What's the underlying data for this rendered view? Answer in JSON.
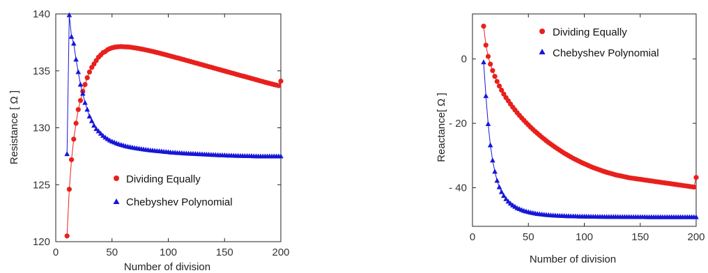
{
  "chart_data": [
    {
      "type": "line",
      "xlabel": "Number of division",
      "ylabel": "Resistance [ Ω ]",
      "xlim": [
        0,
        200
      ],
      "ylim": [
        120,
        140
      ],
      "xticks": [
        0,
        50,
        100,
        150,
        200
      ],
      "yticks": [
        120,
        125,
        130,
        135,
        140
      ],
      "xtick_labels": [
        "0",
        "50",
        "100",
        "150",
        "200"
      ],
      "ytick_labels": [
        "120",
        "125",
        "130",
        "135",
        "140"
      ],
      "grid": false,
      "legend_position": "lower-center",
      "series": [
        {
          "name": "Dividing Equally",
          "marker": "circle",
          "color": "#e8201c",
          "x_start": 10,
          "x_step": 2,
          "values": [
            120.5,
            124.6,
            127.2,
            129.0,
            130.4,
            131.6,
            132.4,
            133.2,
            133.8,
            134.4,
            134.9,
            135.3,
            135.6,
            135.9,
            136.2,
            136.4,
            136.6,
            136.7,
            136.85,
            136.95,
            137.02,
            137.07,
            137.1,
            137.12,
            137.13,
            137.12,
            137.11,
            137.1,
            137.08,
            137.05,
            137.02,
            136.99,
            136.96,
            136.92,
            136.88,
            136.84,
            136.8,
            136.75,
            136.71,
            136.66,
            136.61,
            136.56,
            136.51,
            136.46,
            136.41,
            136.35,
            136.3,
            136.25,
            136.19,
            136.14,
            136.09,
            136.03,
            135.98,
            135.92,
            135.87,
            135.81,
            135.76,
            135.7,
            135.65,
            135.59,
            135.54,
            135.48,
            135.43,
            135.37,
            135.32,
            135.26,
            135.21,
            135.15,
            135.1,
            135.04,
            134.99,
            134.93,
            134.88,
            134.82,
            134.77,
            134.71,
            134.66,
            134.6,
            134.55,
            134.5,
            134.44,
            134.39,
            134.33,
            134.28,
            134.22,
            134.17,
            134.11,
            134.06,
            134.0,
            133.95,
            133.9,
            133.85,
            133.8,
            133.75,
            133.7,
            134.1
          ]
        },
        {
          "name": "Chebyshev Polynomial",
          "marker": "triangle",
          "color": "#1616d8",
          "x_start": 10,
          "x_step": 2,
          "values": [
            127.7,
            139.9,
            138.0,
            137.4,
            136.0,
            134.9,
            133.8,
            133.0,
            132.2,
            131.6,
            131.0,
            130.6,
            130.2,
            129.9,
            129.7,
            129.5,
            129.3,
            129.15,
            129.02,
            128.9,
            128.8,
            128.72,
            128.64,
            128.57,
            128.51,
            128.45,
            128.4,
            128.35,
            128.31,
            128.27,
            128.23,
            128.2,
            128.17,
            128.14,
            128.11,
            128.08,
            128.06,
            128.03,
            128.01,
            127.99,
            127.97,
            127.95,
            127.93,
            127.91,
            127.89,
            127.87,
            127.85,
            127.83,
            127.82,
            127.8,
            127.79,
            127.78,
            127.76,
            127.75,
            127.74,
            127.73,
            127.72,
            127.71,
            127.7,
            127.69,
            127.68,
            127.67,
            127.66,
            127.65,
            127.64,
            127.63,
            127.62,
            127.61,
            127.6,
            127.6,
            127.59,
            127.58,
            127.57,
            127.57,
            127.56,
            127.55,
            127.55,
            127.54,
            127.54,
            127.53,
            127.53,
            127.52,
            127.52,
            127.51,
            127.51,
            127.5,
            127.5,
            127.5,
            127.5,
            127.5,
            127.5,
            127.5,
            127.5,
            127.5,
            127.5,
            127.5
          ]
        }
      ]
    },
    {
      "type": "line",
      "xlabel": "Number of division",
      "ylabel": "Reactance[ Ω ]",
      "xlim": [
        0,
        200
      ],
      "ylim": [
        -52,
        14
      ],
      "xticks": [
        0,
        50,
        100,
        150,
        200
      ],
      "yticks": [
        0,
        -20,
        -40
      ],
      "xtick_labels": [
        "0",
        "50",
        "100",
        "150",
        "200"
      ],
      "ytick_labels": [
        "0",
        "- 20",
        "- 40"
      ],
      "grid": false,
      "legend_position": "top-right",
      "series": [
        {
          "name": "Dividing Equally",
          "marker": "circle",
          "color": "#e8201c",
          "x_start": 10,
          "x_step": 2,
          "values": [
            10.2,
            4.3,
            0.8,
            -1.6,
            -3.6,
            -5.4,
            -7.0,
            -8.4,
            -9.7,
            -10.9,
            -12.0,
            -13.0,
            -14.0,
            -14.95,
            -15.85,
            -16.7,
            -17.5,
            -18.3,
            -19.05,
            -19.8,
            -20.5,
            -21.2,
            -21.85,
            -22.5,
            -23.1,
            -23.7,
            -24.3,
            -24.85,
            -25.4,
            -25.95,
            -26.45,
            -26.95,
            -27.45,
            -27.9,
            -28.35,
            -28.8,
            -29.25,
            -29.65,
            -30.05,
            -30.45,
            -30.85,
            -31.2,
            -31.55,
            -31.9,
            -32.25,
            -32.55,
            -32.85,
            -33.15,
            -33.45,
            -33.75,
            -34.0,
            -34.25,
            -34.5,
            -34.75,
            -35.0,
            -35.2,
            -35.4,
            -35.6,
            -35.8,
            -36.0,
            -36.15,
            -36.3,
            -36.45,
            -36.6,
            -36.75,
            -36.9,
            -37.0,
            -37.1,
            -37.2,
            -37.3,
            -37.4,
            -37.5,
            -37.6,
            -37.7,
            -37.8,
            -37.9,
            -38.0,
            -38.1,
            -38.2,
            -38.3,
            -38.4,
            -38.5,
            -38.6,
            -38.7,
            -38.8,
            -38.9,
            -39.0,
            -39.1,
            -39.2,
            -39.3,
            -39.4,
            -39.5,
            -39.6,
            -39.7,
            -39.8,
            -36.8
          ]
        },
        {
          "name": "Chebyshev Polynomial",
          "marker": "triangle",
          "color": "#1616d8",
          "x_start": 10,
          "x_step": 2,
          "values": [
            -1.0,
            -11.5,
            -20.2,
            -26.8,
            -31.5,
            -35.0,
            -37.8,
            -39.8,
            -41.3,
            -42.5,
            -43.5,
            -44.3,
            -44.9,
            -45.45,
            -45.9,
            -46.3,
            -46.6,
            -46.9,
            -47.15,
            -47.35,
            -47.55,
            -47.7,
            -47.85,
            -47.98,
            -48.1,
            -48.2,
            -48.28,
            -48.35,
            -48.42,
            -48.48,
            -48.53,
            -48.58,
            -48.62,
            -48.66,
            -48.7,
            -48.73,
            -48.76,
            -48.79,
            -48.81,
            -48.83,
            -48.85,
            -48.87,
            -48.89,
            -48.9,
            -48.92,
            -48.93,
            -48.94,
            -48.95,
            -48.96,
            -48.97,
            -48.98,
            -48.99,
            -49.0,
            -49.0,
            -49.01,
            -49.02,
            -49.02,
            -49.03,
            -49.03,
            -49.04,
            -49.04,
            -49.05,
            -49.05,
            -49.06,
            -49.06,
            -49.06,
            -49.07,
            -49.07,
            -49.07,
            -49.08,
            -49.08,
            -49.08,
            -49.08,
            -49.09,
            -49.09,
            -49.09,
            -49.09,
            -49.1,
            -49.1,
            -49.1,
            -49.1,
            -49.1,
            -49.1,
            -49.1,
            -49.1,
            -49.1,
            -49.1,
            -49.1,
            -49.1,
            -49.1,
            -49.1,
            -49.1,
            -49.1,
            -49.1,
            -49.1,
            -49.1
          ]
        }
      ]
    }
  ]
}
